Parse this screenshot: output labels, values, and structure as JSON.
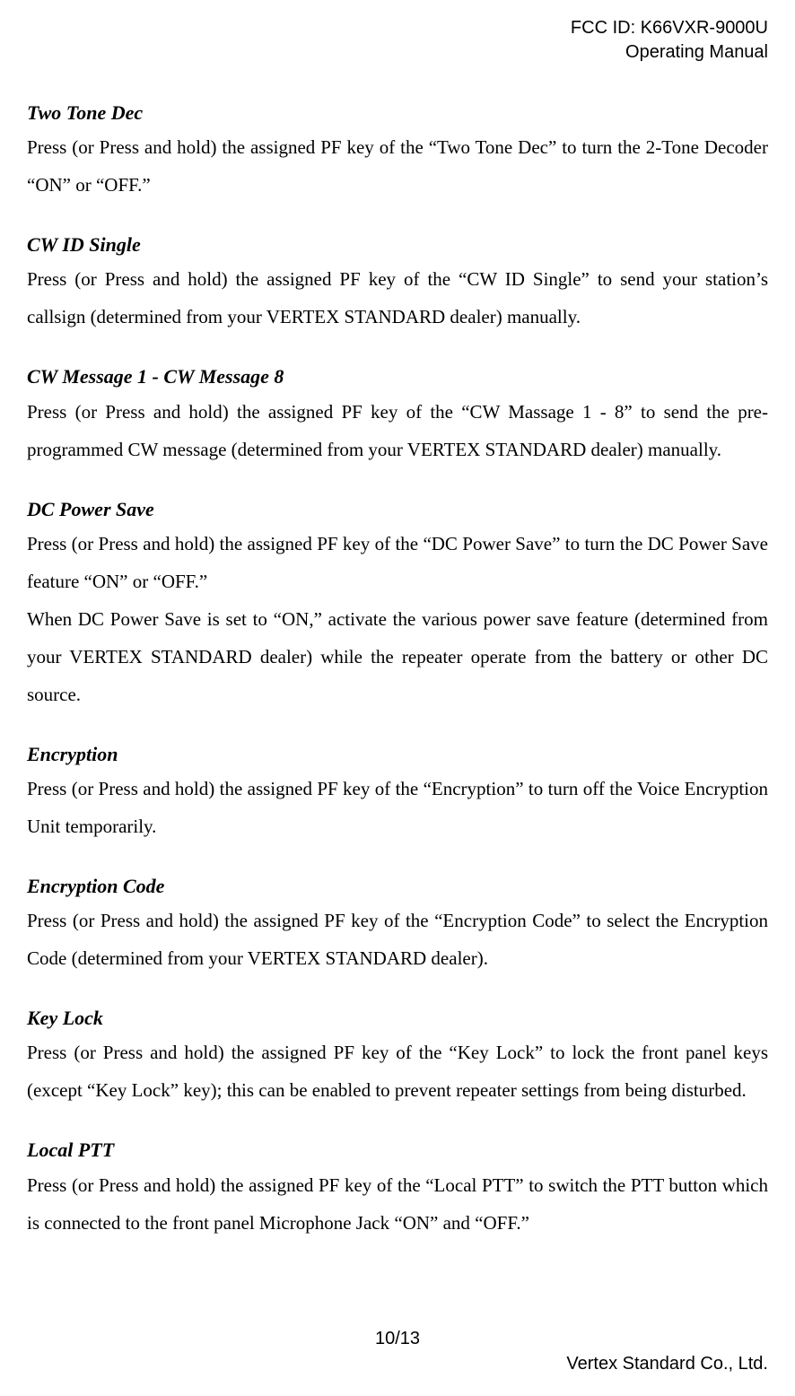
{
  "header": {
    "line1": "FCC ID: K66VXR-9000U",
    "line2": "Operating Manual"
  },
  "sections": [
    {
      "title": "Two Tone Dec",
      "body": "Press (or Press and hold) the assigned PF key of the “Two Tone Dec” to turn the 2-Tone Decoder “ON” or “OFF.”"
    },
    {
      "title": "CW ID Single",
      "body": "Press (or Press and hold) the assigned PF key of the “CW ID Single” to send your station’s callsign (determined from your VERTEX STANDARD dealer) manually."
    },
    {
      "title": "CW Message 1 - CW Message 8",
      "body": "Press (or Press and hold) the assigned PF key of the “CW Massage 1 - 8” to send the pre-programmed CW message (determined from your VERTEX STANDARD dealer) manually."
    },
    {
      "title": "DC Power Save",
      "body": "Press (or Press and hold) the assigned PF key of the “DC Power Save” to turn the DC Power Save feature “ON” or “OFF.”\nWhen DC Power Save is set to “ON,” activate the various power save feature (determined from your VERTEX STANDARD dealer) while the repeater operate from the battery or other DC source."
    },
    {
      "title": "Encryption",
      "body": "Press (or Press and hold) the assigned PF key of the “Encryption” to turn off the Voice Encryption Unit temporarily."
    },
    {
      "title": "Encryption Code",
      "body": "Press (or Press and hold) the assigned PF key of the “Encryption Code” to select the Encryption Code (determined from your VERTEX STANDARD dealer)."
    },
    {
      "title": "Key Lock",
      "body": "Press (or Press and hold) the assigned PF key of the “Key Lock” to lock the front panel keys (except “Key Lock” key); this can be enabled to prevent repeater settings from being disturbed."
    },
    {
      "title": "Local PTT",
      "body": "Press (or Press and hold) the assigned PF key of the “Local PTT” to switch the PTT button which is connected to the front panel Microphone Jack “ON” and “OFF.”"
    }
  ],
  "footer": {
    "page": "10/13",
    "company": "Vertex Standard Co., Ltd."
  }
}
